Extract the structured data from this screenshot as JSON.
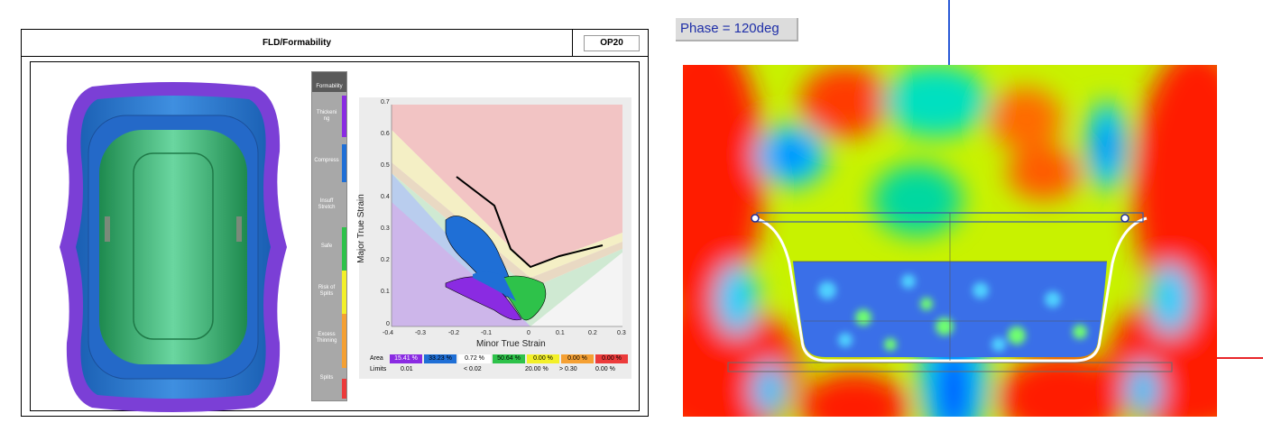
{
  "report": {
    "title": "FLD/Formability",
    "op": "OP20"
  },
  "legend": {
    "header": "Formability",
    "items": [
      {
        "label": "Thickeni\nng",
        "color": "#8a2be2"
      },
      {
        "label": "Compress",
        "color": "#1f6fd6"
      },
      {
        "label": "Insuff\nStretch",
        "color": "#a8a8a8"
      },
      {
        "label": "Safe",
        "color": "#2ec24a"
      },
      {
        "label": "Risk of\nSplits",
        "color": "#f3f029"
      },
      {
        "label": "Excess\nThinning",
        "color": "#f5a033"
      },
      {
        "label": "Splits",
        "color": "#ec3b3b"
      }
    ]
  },
  "fld": {
    "xlabel": "Minor True Strain",
    "ylabel": "Major True Strain",
    "xticks": [
      "-0.4",
      "-0.3",
      "-0.2",
      "-0.1",
      "0",
      "0.1",
      "0.2",
      "0.3"
    ],
    "yticks": [
      "0",
      "0.1",
      "0.2",
      "0.3",
      "0.4",
      "0.5",
      "0.6",
      "0.7"
    ],
    "area_label": "Area",
    "limits_label": "Limits",
    "area_values": [
      "15.41 %",
      "33.23 %",
      "0.72 %",
      "50.64 %",
      "0.00 %",
      "0.00 %"
    ],
    "area_colors": [
      "#8a2be2",
      "#1f6fd6",
      "#ffffff",
      "#2ec24a",
      "#f3f029",
      "#ec3b3b"
    ],
    "limits_values": [
      "0.01",
      "< 0.02",
      "20.00 %",
      "> 0.30",
      "0.00 %"
    ]
  },
  "phase": {
    "label": "Phase = 120deg"
  }
}
